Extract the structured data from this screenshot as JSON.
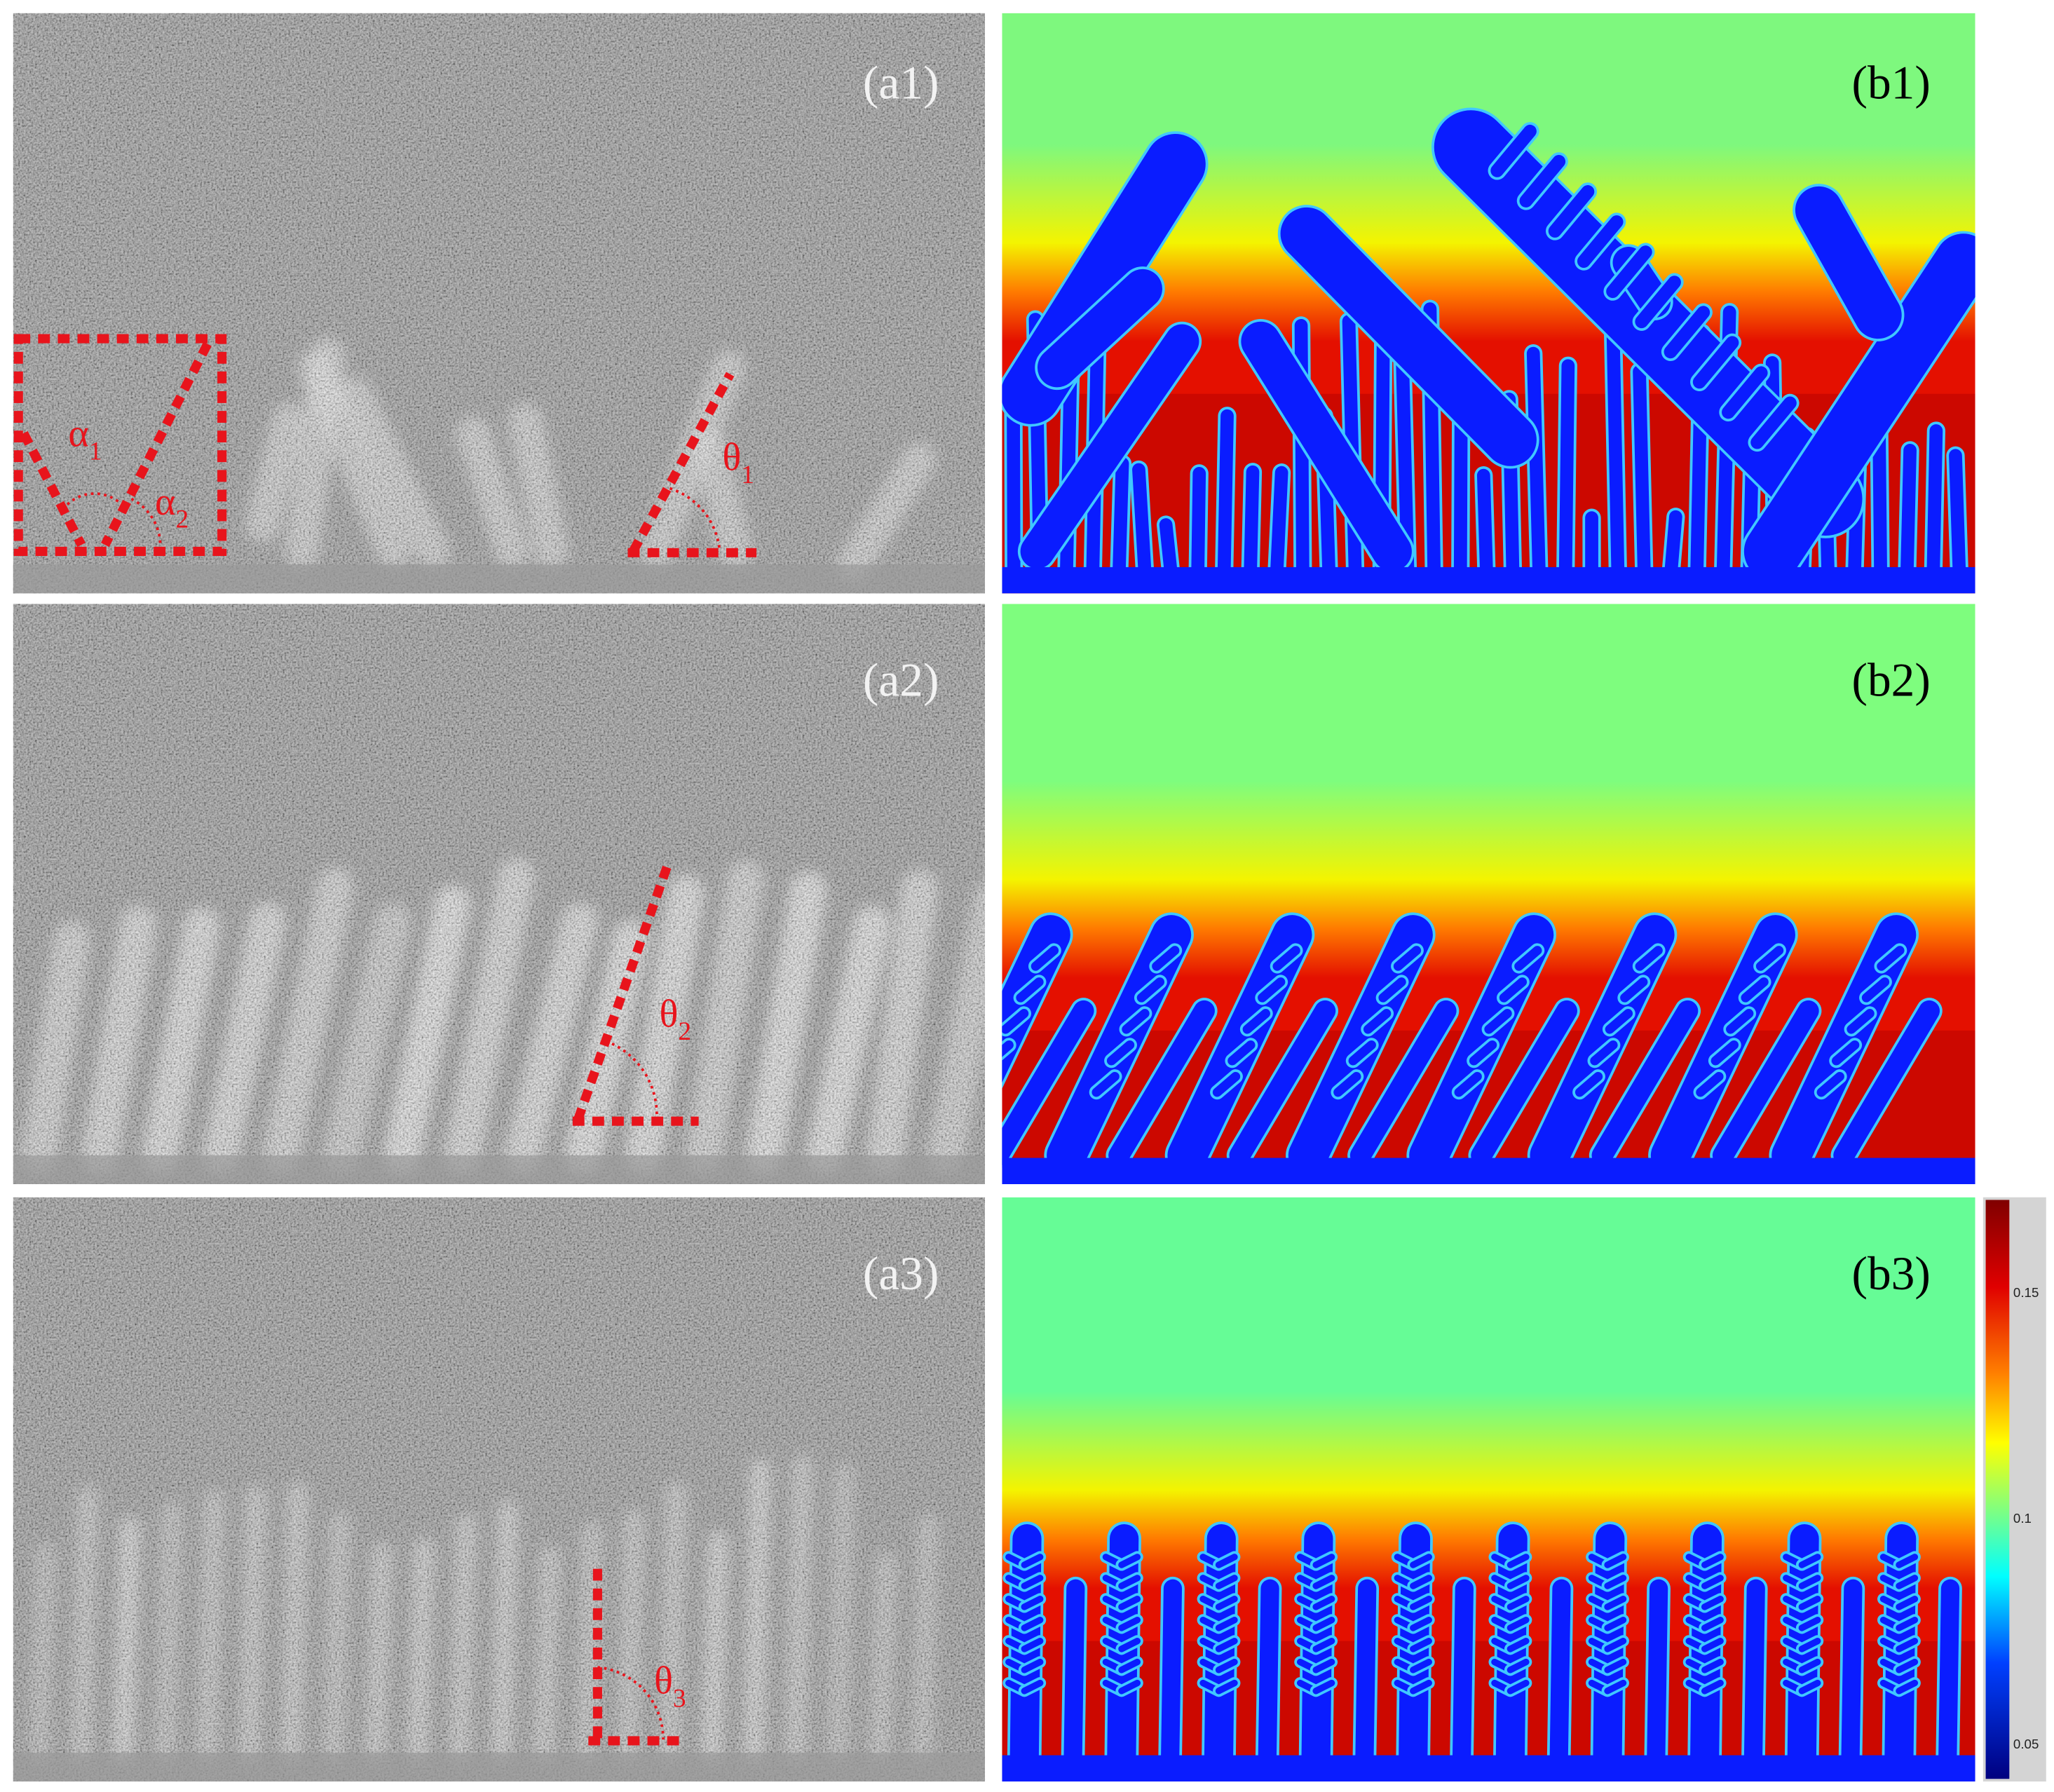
{
  "panels": {
    "a1": "(a1)",
    "b1": "(b1)",
    "a2": "(a2)",
    "b2": "(b2)",
    "a3": "(a3)",
    "b3": "(b3)"
  },
  "angles": [
    {
      "symbol": "α",
      "sub": "1"
    },
    {
      "symbol": "α",
      "sub": "2"
    },
    {
      "symbol": "θ",
      "sub": "1"
    },
    {
      "symbol": "θ",
      "sub": "2"
    },
    {
      "symbol": "θ",
      "sub": "3"
    }
  ],
  "colorbar": {
    "ticks": [
      "0.15",
      "0.1",
      "0.05"
    ]
  }
}
